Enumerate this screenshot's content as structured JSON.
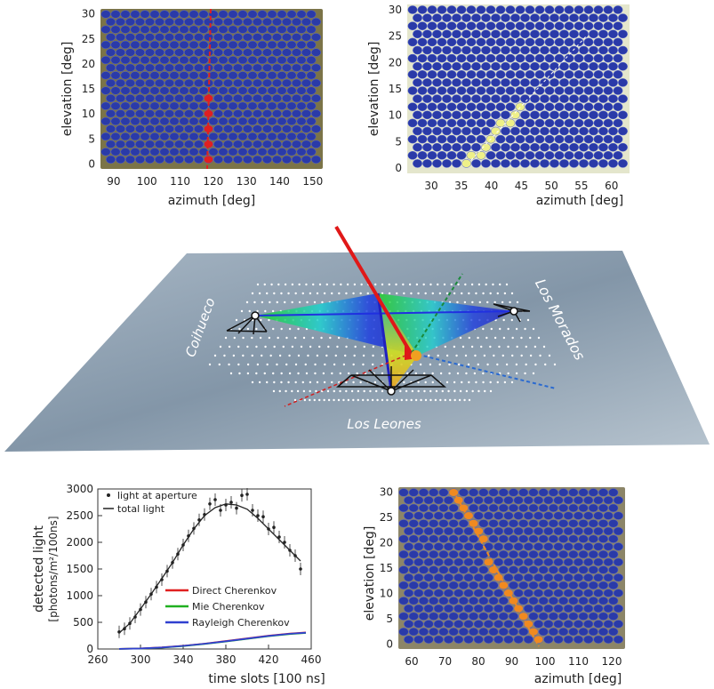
{
  "panels": {
    "top_left": {
      "xlabel": "azimuth [deg]",
      "ylabel": "elevation [deg]",
      "xticks": [
        "90",
        "100",
        "110",
        "120",
        "130",
        "140",
        "150"
      ],
      "yticks": [
        "0",
        "5",
        "10",
        "15",
        "20",
        "25",
        "30"
      ],
      "xlim": [
        86,
        153
      ],
      "ylim": [
        -1,
        31
      ],
      "background": "#7b7448",
      "track_color": "#e02020"
    },
    "top_right": {
      "xlabel": "azimuth [deg]",
      "ylabel": "elevation [deg]",
      "xticks": [
        "30",
        "35",
        "40",
        "45",
        "50",
        "55",
        "60"
      ],
      "yticks": [
        "0",
        "5",
        "10",
        "15",
        "20",
        "25",
        "30"
      ],
      "xlim": [
        26,
        63
      ],
      "ylim": [
        -1,
        31
      ],
      "background": "#e4e6cc",
      "track_color": "#eef088"
    },
    "bottom_right": {
      "xlabel": "azimuth [deg]",
      "ylabel": "elevation [deg]",
      "xticks": [
        "60",
        "70",
        "80",
        "90",
        "100",
        "110",
        "120"
      ],
      "yticks": [
        "0",
        "5",
        "10",
        "15",
        "20",
        "25",
        "30"
      ],
      "xlim": [
        56,
        124
      ],
      "ylim": [
        -1,
        31
      ],
      "background": "#8c8568",
      "track_color": "#f08a20"
    }
  },
  "diagram": {
    "sites": [
      "Coihueco",
      "Los Morados",
      "Los Leones"
    ],
    "ground_color": "#8fa3b5",
    "shower_color": "#e01818"
  },
  "chart_data": {
    "type": "line",
    "xlabel": "time slots [100 ns]",
    "ylabel_line1": "detected light",
    "ylabel_line2": "[photons/m²/100ns]",
    "xlim": [
      260,
      460
    ],
    "ylim": [
      0,
      3000
    ],
    "xticks": [
      "260",
      "300",
      "340",
      "380",
      "420",
      "460"
    ],
    "yticks": [
      "0",
      "500",
      "1000",
      "1500",
      "2000",
      "2500",
      "3000"
    ],
    "legend_top": [
      "light at aperture",
      "total light"
    ],
    "legend_components": [
      "Direct Cherenkov",
      "Mie Cherenkov",
      "Rayleigh Cherenkov"
    ],
    "series": [
      {
        "name": "total light",
        "color": "#222222",
        "x": [
          280,
          290,
          300,
          310,
          320,
          330,
          340,
          350,
          360,
          370,
          380,
          390,
          400,
          410,
          420,
          430,
          440,
          450
        ],
        "values": [
          300,
          480,
          750,
          1030,
          1320,
          1620,
          1950,
          2250,
          2500,
          2650,
          2720,
          2700,
          2620,
          2450,
          2250,
          2050,
          1850,
          1650
        ]
      },
      {
        "name": "Direct Cherenkov",
        "color": "#e02020",
        "x": [
          280,
          300,
          320,
          340,
          360,
          380,
          400,
          420,
          440,
          455
        ],
        "values": [
          2,
          10,
          30,
          60,
          100,
          150,
          200,
          250,
          290,
          310
        ]
      },
      {
        "name": "Mie Cherenkov",
        "color": "#20b020",
        "x": [
          280,
          300,
          320,
          340,
          360,
          380,
          400,
          420,
          440,
          455
        ],
        "values": [
          2,
          8,
          25,
          55,
          95,
          140,
          190,
          240,
          280,
          300
        ]
      },
      {
        "name": "Rayleigh Cherenkov",
        "color": "#3040d0",
        "x": [
          280,
          300,
          320,
          340,
          360,
          380,
          400,
          420,
          440,
          455
        ],
        "values": [
          2,
          9,
          28,
          58,
          98,
          145,
          195,
          245,
          285,
          305
        ]
      },
      {
        "name": "light at aperture",
        "color": "#222222",
        "type": "points",
        "x": [
          280,
          285,
          290,
          295,
          300,
          305,
          310,
          315,
          320,
          325,
          330,
          335,
          340,
          345,
          350,
          355,
          360,
          365,
          370,
          375,
          380,
          385,
          390,
          395,
          400,
          405,
          410,
          415,
          420,
          425,
          430,
          435,
          440,
          445,
          450
        ],
        "values": [
          320,
          380,
          480,
          600,
          740,
          880,
          1030,
          1160,
          1300,
          1460,
          1620,
          1780,
          1950,
          2120,
          2260,
          2420,
          2520,
          2720,
          2800,
          2600,
          2700,
          2750,
          2640,
          2880,
          2900,
          2600,
          2500,
          2480,
          2250,
          2280,
          2100,
          2000,
          1850,
          1750,
          1500
        ]
      }
    ]
  }
}
